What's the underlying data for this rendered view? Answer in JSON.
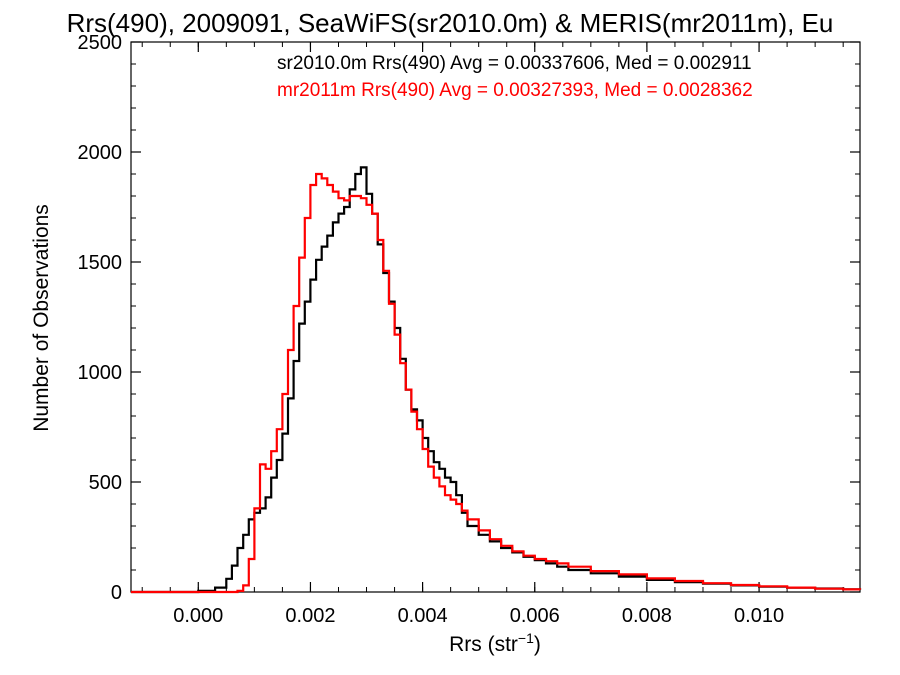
{
  "chart_data": {
    "type": "line",
    "title": "Rrs(490), 2009091, SeaWiFS(sr2010.0m) & MERIS(mr2011m), Eu",
    "xlabel_main": "Rrs (str",
    "xlabel_sup": "−1",
    "xlabel_close": ")",
    "ylabel": "Number of Observations",
    "xlim": [
      -0.0012,
      0.0118
    ],
    "ylim": [
      0,
      2500
    ],
    "x_ticks": [
      0.0,
      0.002,
      0.004,
      0.006,
      0.008,
      0.01
    ],
    "x_tick_labels": [
      "0.000",
      "0.002",
      "0.004",
      "0.006",
      "0.008",
      "0.010"
    ],
    "y_ticks": [
      0,
      500,
      1000,
      1500,
      2000,
      2500
    ],
    "y_tick_labels": [
      "0",
      "500",
      "1000",
      "1500",
      "2000",
      "2500"
    ],
    "annotations": [
      {
        "text": "sr2010.0m Rrs(490) Avg = 0.00337606, Med = 0.002911",
        "color": "#000000"
      },
      {
        "text": "mr2011m Rrs(490) Avg = 0.00327393, Med = 0.0028362",
        "color": "#ff0000"
      }
    ],
    "series": [
      {
        "name": "sr2010.0m",
        "color": "#000000",
        "x": [
          -0.0012,
          -0.0006,
          0.0,
          0.0003,
          0.0005,
          0.0006,
          0.0007,
          0.0008,
          0.0009,
          0.001,
          0.0011,
          0.0012,
          0.0013,
          0.0014,
          0.0015,
          0.0016,
          0.0017,
          0.0018,
          0.0019,
          0.002,
          0.0021,
          0.0022,
          0.0023,
          0.0024,
          0.0025,
          0.0026,
          0.0027,
          0.0028,
          0.0029,
          0.003,
          0.0031,
          0.0032,
          0.0033,
          0.0034,
          0.0035,
          0.0036,
          0.0037,
          0.0038,
          0.0039,
          0.004,
          0.0041,
          0.0042,
          0.0043,
          0.0044,
          0.0045,
          0.0046,
          0.0047,
          0.0048,
          0.005,
          0.0052,
          0.0054,
          0.0056,
          0.0058,
          0.006,
          0.0062,
          0.0064,
          0.0066,
          0.007,
          0.0075,
          0.008,
          0.0085,
          0.009,
          0.0095,
          0.01,
          0.0105,
          0.011,
          0.0115,
          0.0118
        ],
        "y": [
          0,
          0,
          5,
          20,
          60,
          120,
          200,
          260,
          330,
          360,
          380,
          430,
          520,
          600,
          720,
          880,
          1050,
          1220,
          1320,
          1420,
          1510,
          1570,
          1620,
          1680,
          1720,
          1750,
          1830,
          1900,
          1930,
          1810,
          1720,
          1580,
          1450,
          1320,
          1200,
          1060,
          920,
          830,
          780,
          700,
          640,
          590,
          560,
          520,
          500,
          440,
          360,
          300,
          260,
          230,
          200,
          180,
          160,
          145,
          130,
          115,
          100,
          85,
          70,
          55,
          45,
          38,
          30,
          24,
          20,
          16,
          12,
          10
        ]
      },
      {
        "name": "mr2011m",
        "color": "#ff0000",
        "x": [
          -0.0012,
          -0.0004,
          0.0005,
          0.0007,
          0.0008,
          0.0009,
          0.001,
          0.0011,
          0.0012,
          0.0013,
          0.0014,
          0.0015,
          0.0016,
          0.0017,
          0.0018,
          0.0019,
          0.002,
          0.0021,
          0.0022,
          0.0023,
          0.0024,
          0.0025,
          0.0026,
          0.0027,
          0.0028,
          0.0029,
          0.003,
          0.0031,
          0.0032,
          0.0033,
          0.0034,
          0.0035,
          0.0036,
          0.0037,
          0.0038,
          0.0039,
          0.004,
          0.0041,
          0.0042,
          0.0043,
          0.0044,
          0.0045,
          0.0046,
          0.0047,
          0.0048,
          0.005,
          0.0052,
          0.0054,
          0.0056,
          0.0058,
          0.006,
          0.0062,
          0.0064,
          0.0066,
          0.007,
          0.0075,
          0.008,
          0.0085,
          0.009,
          0.0095,
          0.01,
          0.0105,
          0.011,
          0.0115,
          0.0118
        ],
        "y": [
          0,
          0,
          0,
          5,
          30,
          150,
          380,
          580,
          560,
          640,
          740,
          900,
          1100,
          1300,
          1520,
          1700,
          1850,
          1900,
          1880,
          1850,
          1820,
          1790,
          1780,
          1800,
          1800,
          1790,
          1760,
          1720,
          1600,
          1460,
          1310,
          1170,
          1040,
          920,
          820,
          740,
          650,
          570,
          520,
          480,
          440,
          420,
          400,
          370,
          330,
          280,
          240,
          210,
          185,
          165,
          150,
          140,
          130,
          115,
          95,
          80,
          62,
          50,
          40,
          32,
          26,
          20,
          15,
          12,
          10
        ]
      }
    ]
  }
}
